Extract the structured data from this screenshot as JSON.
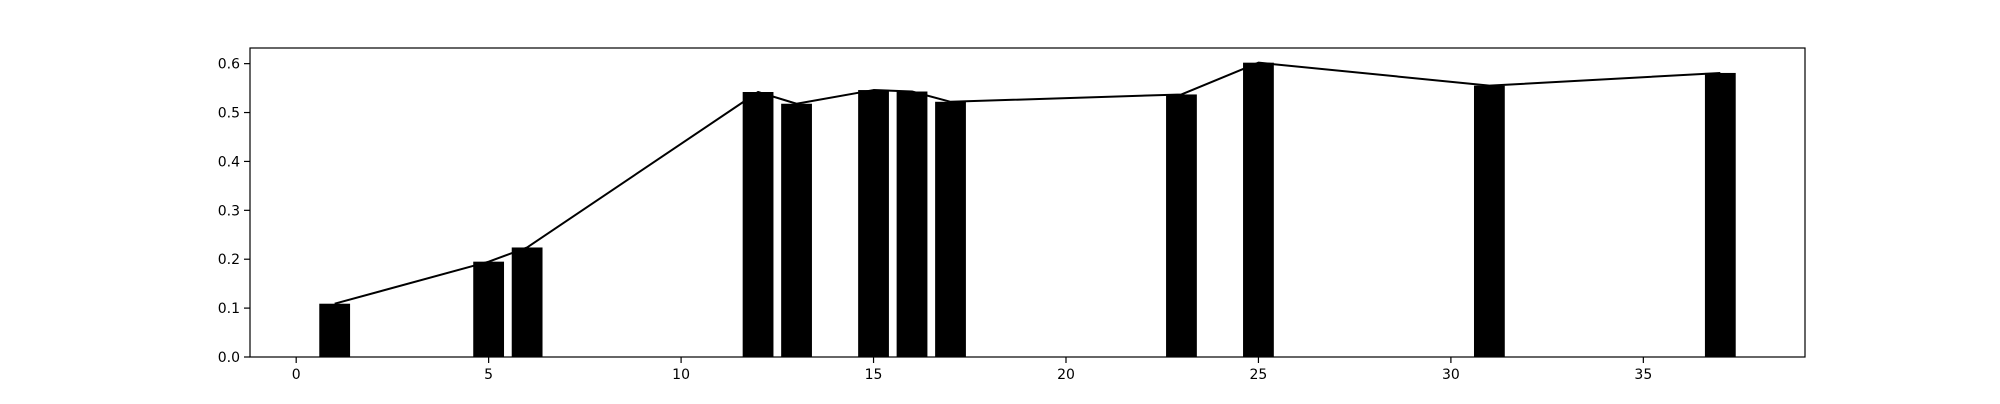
{
  "chart_data": {
    "type": "bar",
    "title": "",
    "xlabel": "",
    "ylabel": "",
    "x": [
      1,
      5,
      6,
      12,
      13,
      15,
      16,
      17,
      23,
      25,
      31,
      37
    ],
    "values": [
      0.109,
      0.195,
      0.224,
      0.542,
      0.518,
      0.546,
      0.543,
      0.522,
      0.537,
      0.602,
      0.555,
      0.581
    ],
    "overlay_line": {
      "x": [
        1,
        5,
        6,
        12,
        13,
        15,
        16,
        17,
        23,
        25,
        31,
        37
      ],
      "values": [
        0.109,
        0.195,
        0.224,
        0.542,
        0.518,
        0.546,
        0.543,
        0.522,
        0.537,
        0.602,
        0.555,
        0.581
      ],
      "color": "#000000"
    },
    "bar_color": "#000000",
    "xlim": [
      -1.2,
      39.2
    ],
    "ylim": [
      0.0,
      0.632
    ],
    "xticks": [
      0,
      5,
      10,
      15,
      20,
      25,
      30,
      35
    ],
    "yticks": [
      0.0,
      0.1,
      0.2,
      0.3,
      0.4,
      0.5,
      0.6
    ],
    "ytick_labels": [
      "0.0",
      "0.1",
      "0.2",
      "0.3",
      "0.4",
      "0.5",
      "0.6"
    ],
    "grid": false,
    "legend": "none"
  }
}
